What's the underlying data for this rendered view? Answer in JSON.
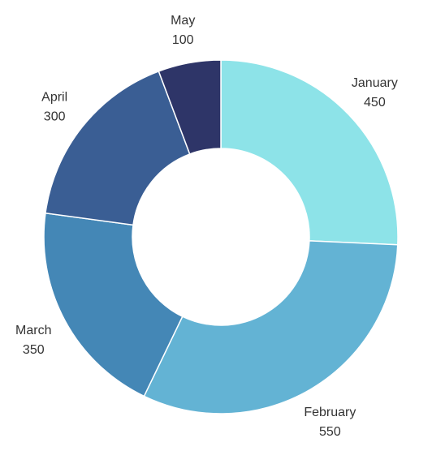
{
  "chart_data": {
    "type": "pie",
    "style": "donut",
    "title": "",
    "categories": [
      "January",
      "February",
      "March",
      "April",
      "May"
    ],
    "values": [
      450,
      550,
      350,
      300,
      100
    ],
    "colors": [
      "#8de3e8",
      "#63b3d4",
      "#4487b6",
      "#3a5e94",
      "#2e3568"
    ],
    "legend": "none",
    "data_labels": "outside, category name and value"
  }
}
